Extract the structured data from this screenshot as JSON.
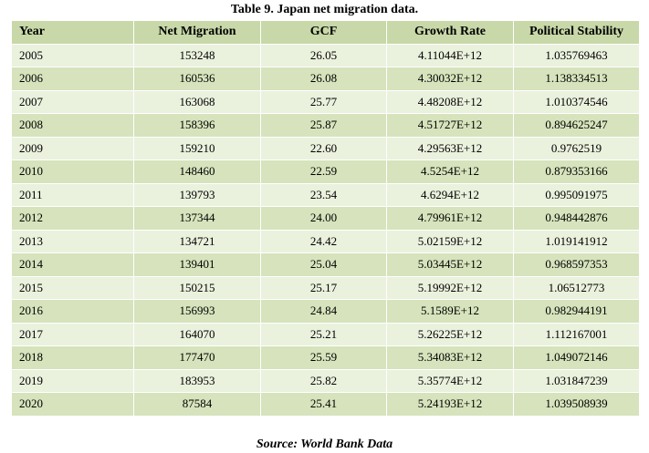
{
  "caption": "Table 9. Japan net migration data.",
  "columns": [
    "Year",
    "Net Migration",
    "GCF",
    "Growth Rate",
    "Political Stability"
  ],
  "rows": [
    [
      "2005",
      "153248",
      "26.05",
      "4.11044E+12",
      "1.035769463"
    ],
    [
      "2006",
      "160536",
      "26.08",
      "4.30032E+12",
      "1.138334513"
    ],
    [
      "2007",
      "163068",
      "25.77",
      "4.48208E+12",
      "1.010374546"
    ],
    [
      "2008",
      "158396",
      "25.87",
      "4.51727E+12",
      "0.894625247"
    ],
    [
      "2009",
      "159210",
      "22.60",
      "4.29563E+12",
      "0.9762519"
    ],
    [
      "2010",
      "148460",
      "22.59",
      "4.5254E+12",
      "0.879353166"
    ],
    [
      "2011",
      "139793",
      "23.54",
      "4.6294E+12",
      "0.995091975"
    ],
    [
      "2012",
      "137344",
      "24.00",
      "4.79961E+12",
      "0.948442876"
    ],
    [
      "2013",
      "134721",
      "24.42",
      "5.02159E+12",
      "1.019141912"
    ],
    [
      "2014",
      "139401",
      "25.04",
      "5.03445E+12",
      "0.968597353"
    ],
    [
      "2015",
      "150215",
      "25.17",
      "5.19992E+12",
      "1.06512773"
    ],
    [
      "2016",
      "156993",
      "24.84",
      "5.1589E+12",
      "0.982944191"
    ],
    [
      "2017",
      "164070",
      "25.21",
      "5.26225E+12",
      "1.112167001"
    ],
    [
      "2018",
      "177470",
      "25.59",
      "5.34083E+12",
      "1.049072146"
    ],
    [
      "2019",
      "183953",
      "25.82",
      "5.35774E+12",
      "1.031847239"
    ],
    [
      "2020",
      "87584",
      "25.41",
      "5.24193E+12",
      "1.039508939"
    ]
  ],
  "source": "Source: World Bank Data",
  "colors": {
    "header_bg": "#c8d8a8",
    "row_light": "#eaf1dd",
    "row_dark": "#d6e3bc"
  }
}
